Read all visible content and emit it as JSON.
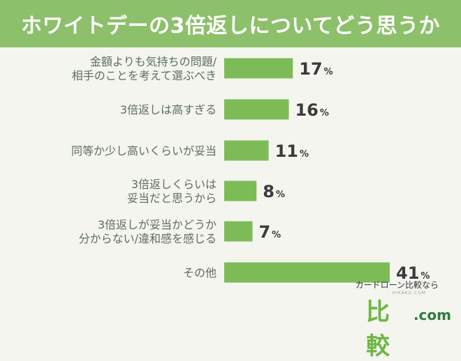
{
  "header": {
    "title": "ホワイトデーの3倍返しについてどう思うか"
  },
  "colors": {
    "bar": "#7dbb57",
    "header_bg": "#8cc06a",
    "background": "#f3f5ee"
  },
  "chart_data": {
    "type": "bar",
    "orientation": "horizontal",
    "categories": [
      "金額よりも気持ちの問題/\n相手のことを考えて選ぶべき",
      "3倍返しは高すぎる",
      "同等か少し高いくらいが妥当",
      "3倍返しくらいは\n妥当だと思うから",
      "3倍返しが妥当かどうか\n分からない/違和感を感じる",
      "その他"
    ],
    "values": [
      17,
      16,
      11,
      8,
      7,
      41
    ],
    "unit": "%",
    "xlim": [
      0,
      41
    ],
    "grid": false,
    "legend": "none"
  },
  "logo": {
    "tagline": "カードローン比較なら",
    "subtext": "HIKAKU.COM",
    "kanji": "比較",
    "domain": ".com"
  }
}
